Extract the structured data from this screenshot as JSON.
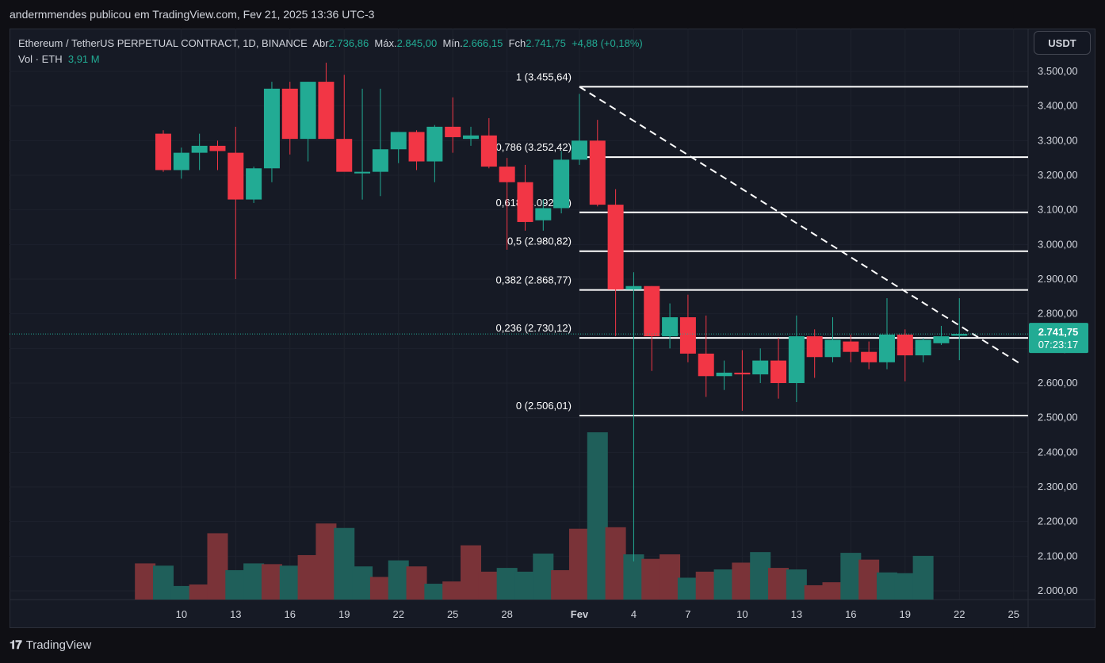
{
  "caption": "andermmendes publicou em TradingView.com, Fev 21, 2025 13:36 UTC-3",
  "legend": {
    "symbol": "Ethereum / TetherUS PERPETUAL CONTRACT, 1D, BINANCE",
    "open_label": "Abr",
    "open": "2.736,86",
    "high_label": "Máx.",
    "high": "2.845,00",
    "low_label": "Mín.",
    "low": "2.666,15",
    "close_label": "Fch",
    "close": "2.741,75",
    "change": "+4,88 (+0,18%)",
    "vol_label": "Vol · ETH",
    "vol": "3,91 M"
  },
  "currency_button": "USDT",
  "brand": "TradingView",
  "colors": {
    "up": "#22ab94",
    "down": "#f23645",
    "volume_up": "#1f5f5a",
    "volume_down": "#7a3338",
    "background": "#161a25",
    "axis_text": "#d1d4dc"
  },
  "chart_data": {
    "type": "candlestick",
    "price_axis": {
      "ylim": [
        1950,
        3560
      ],
      "ticks": [
        3500,
        3400,
        3300,
        3200,
        3100,
        3000,
        2900,
        2800,
        2700,
        2600,
        2500,
        2400,
        2300,
        2200,
        2100,
        2000
      ],
      "tick_labels": [
        "3.500,00",
        "3.400,00",
        "3.300,00",
        "3.200,00",
        "3.100,00",
        "3.000,00",
        "2.900,00",
        "2.800,00",
        "2.700,00",
        "2.600,00",
        "2.500,00",
        "2.400,00",
        "2.300,00",
        "2.200,00",
        "2.100,00",
        "2.000,00"
      ]
    },
    "x_axis": {
      "day_range": [
        -0.5,
        55.8
      ],
      "ticks": [
        {
          "day": 9,
          "label": "10"
        },
        {
          "day": 12,
          "label": "13"
        },
        {
          "day": 15,
          "label": "16"
        },
        {
          "day": 18,
          "label": "19"
        },
        {
          "day": 21,
          "label": "22"
        },
        {
          "day": 24,
          "label": "25"
        },
        {
          "day": 27,
          "label": "28"
        },
        {
          "day": 31,
          "label": "Fev"
        },
        {
          "day": 34,
          "label": "4"
        },
        {
          "day": 37,
          "label": "7"
        },
        {
          "day": 40,
          "label": "10"
        },
        {
          "day": 43,
          "label": "13"
        },
        {
          "day": 46,
          "label": "16"
        },
        {
          "day": 49,
          "label": "19"
        },
        {
          "day": 52,
          "label": "22"
        },
        {
          "day": 55,
          "label": "25"
        }
      ]
    },
    "candles": [
      {
        "d": 8,
        "o": 3320,
        "h": 3330,
        "l": 3210,
        "c": 3215
      },
      {
        "d": 9,
        "o": 3215,
        "h": 3280,
        "l": 3190,
        "c": 3265
      },
      {
        "d": 10,
        "o": 3265,
        "h": 3320,
        "l": 3215,
        "c": 3285
      },
      {
        "d": 11,
        "o": 3285,
        "h": 3300,
        "l": 3215,
        "c": 3270
      },
      {
        "d": 12,
        "o": 3265,
        "h": 3340,
        "l": 2900,
        "c": 3130
      },
      {
        "d": 13,
        "o": 3130,
        "h": 3225,
        "l": 3120,
        "c": 3220
      },
      {
        "d": 14,
        "o": 3220,
        "h": 3470,
        "l": 3180,
        "c": 3450
      },
      {
        "d": 15,
        "o": 3450,
        "h": 3470,
        "l": 3260,
        "c": 3305
      },
      {
        "d": 16,
        "o": 3305,
        "h": 3470,
        "l": 3240,
        "c": 3470
      },
      {
        "d": 17,
        "o": 3470,
        "h": 3525,
        "l": 3305,
        "c": 3305
      },
      {
        "d": 18,
        "o": 3305,
        "h": 3490,
        "l": 3220,
        "c": 3210
      },
      {
        "d": 19,
        "o": 3210,
        "h": 3450,
        "l": 3130,
        "c": 3210
      },
      {
        "d": 20,
        "o": 3210,
        "h": 3450,
        "l": 3140,
        "c": 3275
      },
      {
        "d": 21,
        "o": 3275,
        "h": 3325,
        "l": 3235,
        "c": 3325
      },
      {
        "d": 22,
        "o": 3325,
        "h": 3330,
        "l": 3215,
        "c": 3240
      },
      {
        "d": 23,
        "o": 3240,
        "h": 3345,
        "l": 3180,
        "c": 3340
      },
      {
        "d": 24,
        "o": 3340,
        "h": 3425,
        "l": 3265,
        "c": 3310
      },
      {
        "d": 25,
        "o": 3305,
        "h": 3340,
        "l": 3285,
        "c": 3315
      },
      {
        "d": 26,
        "o": 3315,
        "h": 3365,
        "l": 3220,
        "c": 3225
      },
      {
        "d": 27,
        "o": 3225,
        "h": 3250,
        "l": 2985,
        "c": 3180
      },
      {
        "d": 28,
        "o": 3180,
        "h": 3230,
        "l": 3040,
        "c": 3065
      },
      {
        "d": 29,
        "o": 3070,
        "h": 3130,
        "l": 3040,
        "c": 3105
      },
      {
        "d": 30,
        "o": 3105,
        "h": 3270,
        "l": 3090,
        "c": 3245
      },
      {
        "d": 31,
        "o": 3245,
        "h": 3435,
        "l": 3230,
        "c": 3300
      },
      {
        "d": 32,
        "o": 3300,
        "h": 3360,
        "l": 3110,
        "c": 3115
      },
      {
        "d": 33,
        "o": 3115,
        "h": 3160,
        "l": 2735,
        "c": 2870
      },
      {
        "d": 34,
        "o": 2870,
        "h": 2920,
        "l": 2085,
        "c": 2880
      },
      {
        "d": 35,
        "o": 2880,
        "h": 2880,
        "l": 2635,
        "c": 2735
      },
      {
        "d": 36,
        "o": 2735,
        "h": 2830,
        "l": 2700,
        "c": 2790
      },
      {
        "d": 37,
        "o": 2790,
        "h": 2855,
        "l": 2660,
        "c": 2685
      },
      {
        "d": 38,
        "o": 2685,
        "h": 2795,
        "l": 2560,
        "c": 2620
      },
      {
        "d": 39,
        "o": 2620,
        "h": 2665,
        "l": 2580,
        "c": 2630
      },
      {
        "d": 40,
        "o": 2630,
        "h": 2695,
        "l": 2520,
        "c": 2625
      },
      {
        "d": 41,
        "o": 2625,
        "h": 2700,
        "l": 2600,
        "c": 2665
      },
      {
        "d": 42,
        "o": 2665,
        "h": 2730,
        "l": 2555,
        "c": 2600
      },
      {
        "d": 43,
        "o": 2600,
        "h": 2795,
        "l": 2545,
        "c": 2735
      },
      {
        "d": 44,
        "o": 2735,
        "h": 2755,
        "l": 2615,
        "c": 2675
      },
      {
        "d": 45,
        "o": 2675,
        "h": 2790,
        "l": 2660,
        "c": 2725
      },
      {
        "d": 46,
        "o": 2720,
        "h": 2740,
        "l": 2660,
        "c": 2690
      },
      {
        "d": 47,
        "o": 2690,
        "h": 2720,
        "l": 2640,
        "c": 2660
      },
      {
        "d": 48,
        "o": 2660,
        "h": 2845,
        "l": 2640,
        "c": 2740
      },
      {
        "d": 49,
        "o": 2740,
        "h": 2755,
        "l": 2605,
        "c": 2680
      },
      {
        "d": 50,
        "o": 2680,
        "h": 2730,
        "l": 2660,
        "c": 2725
      },
      {
        "d": 51,
        "o": 2715,
        "h": 2765,
        "l": 2710,
        "c": 2735
      },
      {
        "d": 52,
        "o": 2736.86,
        "h": 2845,
        "l": 2666.15,
        "c": 2741.75
      }
    ],
    "volume_bars_first_clipped": [
      {
        "d": 7,
        "v": 0.48,
        "up": false
      },
      {
        "d": 8,
        "v": 0.45,
        "up": true
      },
      {
        "d": 9,
        "v": 0.18,
        "up": true
      },
      {
        "d": 10,
        "v": 0.2,
        "up": false
      },
      {
        "d": 11,
        "v": 0.88,
        "up": false
      },
      {
        "d": 12,
        "v": 0.39,
        "up": true
      },
      {
        "d": 13,
        "v": 0.48,
        "up": true
      },
      {
        "d": 14,
        "v": 0.47,
        "up": false
      },
      {
        "d": 15,
        "v": 0.45,
        "up": true
      },
      {
        "d": 16,
        "v": 0.59,
        "up": false
      },
      {
        "d": 17,
        "v": 1.01,
        "up": false
      },
      {
        "d": 18,
        "v": 0.95,
        "up": true
      },
      {
        "d": 19,
        "v": 0.44,
        "up": true
      },
      {
        "d": 20,
        "v": 0.3,
        "up": false
      },
      {
        "d": 21,
        "v": 0.52,
        "up": true
      },
      {
        "d": 22,
        "v": 0.44,
        "up": false
      },
      {
        "d": 23,
        "v": 0.21,
        "up": true
      },
      {
        "d": 24,
        "v": 0.24,
        "up": false
      },
      {
        "d": 25,
        "v": 0.72,
        "up": false
      },
      {
        "d": 26,
        "v": 0.37,
        "up": false
      },
      {
        "d": 27,
        "v": 0.42,
        "up": true
      },
      {
        "d": 28,
        "v": 0.37,
        "up": true
      },
      {
        "d": 29,
        "v": 0.61,
        "up": true
      },
      {
        "d": 30,
        "v": 0.39,
        "up": false
      },
      {
        "d": 31,
        "v": 0.94,
        "up": false
      },
      {
        "d": 32,
        "v": 2.22,
        "up": true
      },
      {
        "d": 33,
        "v": 0.96,
        "up": false
      },
      {
        "d": 34,
        "v": 0.6,
        "up": true
      },
      {
        "d": 35,
        "v": 0.54,
        "up": false
      },
      {
        "d": 36,
        "v": 0.6,
        "up": false
      },
      {
        "d": 37,
        "v": 0.29,
        "up": true
      },
      {
        "d": 38,
        "v": 0.37,
        "up": false
      },
      {
        "d": 39,
        "v": 0.4,
        "up": true
      },
      {
        "d": 40,
        "v": 0.49,
        "up": false
      },
      {
        "d": 41,
        "v": 0.63,
        "up": true
      },
      {
        "d": 42,
        "v": 0.42,
        "up": false
      },
      {
        "d": 43,
        "v": 0.4,
        "up": true
      },
      {
        "d": 44,
        "v": 0.19,
        "up": false
      },
      {
        "d": 45,
        "v": 0.23,
        "up": false
      },
      {
        "d": 46,
        "v": 0.62,
        "up": true
      },
      {
        "d": 47,
        "v": 0.53,
        "up": false
      },
      {
        "d": 48,
        "v": 0.36,
        "up": true
      },
      {
        "d": 49,
        "v": 0.35,
        "up": true
      },
      {
        "d": 50,
        "v": 0.58,
        "up": true
      }
    ],
    "fibonacci": [
      {
        "level": "1",
        "price": 3455.64,
        "label": "1 (3.455,64)"
      },
      {
        "level": "0,786",
        "price": 3252.42,
        "label": "0,786 (3.252,42)"
      },
      {
        "level": "0,618",
        "price": 3092.88,
        "label": "0,618 (3.092,88)"
      },
      {
        "level": "0,5",
        "price": 2980.82,
        "label": "0,5 (2.980,82)"
      },
      {
        "level": "0,382",
        "price": 2868.77,
        "label": "0,382 (2.868,77)"
      },
      {
        "level": "0,236",
        "price": 2730.12,
        "label": "0,236 (2.730,12)"
      },
      {
        "level": "0",
        "price": 2506.01,
        "label": "0 (2.506,01)"
      }
    ],
    "fib_start_day": 31,
    "trendline": {
      "from": {
        "day": 31,
        "price": 3455.64
      },
      "to": {
        "day": 55.3,
        "price": 2658
      }
    },
    "last_price": {
      "price": 2741.75,
      "label": "2.741,75",
      "countdown": "07:23:17"
    }
  }
}
